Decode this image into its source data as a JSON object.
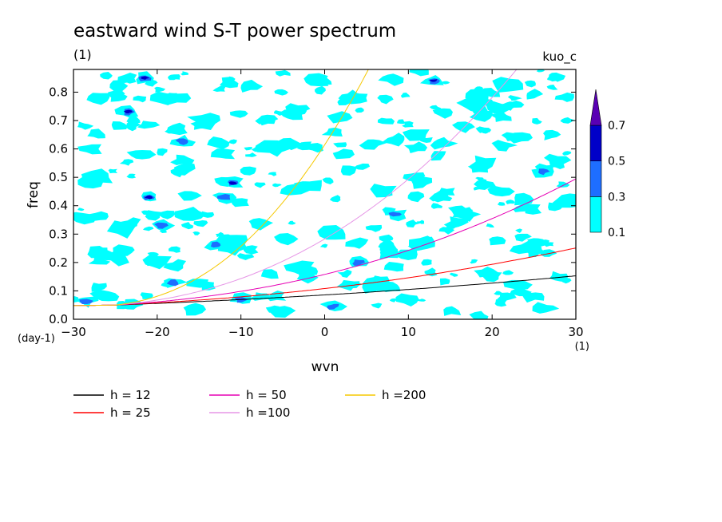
{
  "chart_data": {
    "type": "heatmap",
    "title": "eastward wind S-T power spectrum",
    "subtitle_left": "(1)",
    "subtitle_right": "kuo_c",
    "xlabel": "wvn",
    "ylabel": "freq",
    "x_unit": "(1)",
    "y_unit": "(day-1)",
    "xlim": [
      -30,
      30
    ],
    "ylim": [
      0,
      0.88
    ],
    "x_ticks": [
      -30,
      -20,
      -10,
      0,
      10,
      20,
      30
    ],
    "x_tick_labels": [
      "−30",
      "−20",
      "−10",
      "0",
      "10",
      "20",
      "30"
    ],
    "y_ticks": [
      0.0,
      0.1,
      0.2,
      0.3,
      0.4,
      0.5,
      0.6,
      0.7,
      0.8
    ],
    "y_tick_labels": [
      "0.0",
      "0.1",
      "0.2",
      "0.3",
      "0.4",
      "0.5",
      "0.6",
      "0.7",
      "0.8"
    ],
    "grid": false,
    "colorbar": {
      "levels": [
        0.1,
        0.3,
        0.5,
        0.7
      ],
      "level_labels": [
        "0.1",
        "0.3",
        "0.5",
        "0.7"
      ],
      "colors": [
        "#00ffff",
        "#1e6eff",
        "#0000c8",
        "#5a00b4"
      ],
      "extend": "max",
      "placement": "right"
    },
    "dispersion_curves": [
      {
        "name": "h = 12",
        "h": 12,
        "color": "#000000"
      },
      {
        "name": "h = 25",
        "h": 25,
        "color": "#ff0000"
      },
      {
        "name": "h = 50",
        "h": 50,
        "color": "#e600b4"
      },
      {
        "name": "h =100",
        "h": 100,
        "color": "#e696e6"
      },
      {
        "name": "h =200",
        "h": 200,
        "color": "#f5c800"
      }
    ],
    "legend_placement": "bottom-left",
    "field_pattern": {
      "seed": 7,
      "clusters": [
        {
          "wvn": -28.5,
          "freq": 0.065,
          "level": 0.3
        },
        {
          "wvn": -23.5,
          "freq": 0.73,
          "level": 0.5
        },
        {
          "wvn": -21.5,
          "freq": 0.85,
          "level": 0.5
        },
        {
          "wvn": -21.0,
          "freq": 0.43,
          "level": 0.5
        },
        {
          "wvn": -19.5,
          "freq": 0.33,
          "level": 0.3
        },
        {
          "wvn": -18.0,
          "freq": 0.13,
          "level": 0.3
        },
        {
          "wvn": -17.0,
          "freq": 0.625,
          "level": 0.3
        },
        {
          "wvn": -13.0,
          "freq": 0.26,
          "level": 0.3
        },
        {
          "wvn": -12.0,
          "freq": 0.43,
          "level": 0.3
        },
        {
          "wvn": -11.0,
          "freq": 0.48,
          "level": 0.5
        },
        {
          "wvn": -10.0,
          "freq": 0.07,
          "level": 0.3
        },
        {
          "wvn": 1.0,
          "freq": 0.045,
          "level": 0.3
        },
        {
          "wvn": 4.0,
          "freq": 0.2,
          "level": 0.3
        },
        {
          "wvn": 13.0,
          "freq": 0.84,
          "level": 0.5
        },
        {
          "wvn": 8.5,
          "freq": 0.37,
          "level": 0.3
        },
        {
          "wvn": 26.0,
          "freq": 0.52,
          "level": 0.3
        }
      ],
      "patches": [
        {
          "wvn": -27,
          "freq": 0.78
        },
        {
          "wvn": -28,
          "freq": 0.6
        },
        {
          "wvn": -27,
          "freq": 0.5
        },
        {
          "wvn": -25,
          "freq": 0.22
        },
        {
          "wvn": -26,
          "freq": 0.08
        },
        {
          "wvn": -24,
          "freq": 0.32
        },
        {
          "wvn": -22,
          "freq": 0.58
        },
        {
          "wvn": -20,
          "freq": 0.2
        },
        {
          "wvn": -19,
          "freq": 0.78
        },
        {
          "wvn": -17,
          "freq": 0.53
        },
        {
          "wvn": -16,
          "freq": 0.37
        },
        {
          "wvn": -14,
          "freq": 0.7
        },
        {
          "wvn": -14,
          "freq": 0.12
        },
        {
          "wvn": -12,
          "freq": 0.58
        },
        {
          "wvn": -11,
          "freq": 0.25
        },
        {
          "wvn": -9,
          "freq": 0.82
        },
        {
          "wvn": -8,
          "freq": 0.34
        },
        {
          "wvn": -6,
          "freq": 0.6
        },
        {
          "wvn": -5,
          "freq": 0.03
        },
        {
          "wvn": -4,
          "freq": 0.72
        },
        {
          "wvn": -2,
          "freq": 0.47
        },
        {
          "wvn": -1,
          "freq": 0.84
        },
        {
          "wvn": 1,
          "freq": 0.3
        },
        {
          "wvn": 2,
          "freq": 0.58
        },
        {
          "wvn": 4,
          "freq": 0.78
        },
        {
          "wvn": 6,
          "freq": 0.12
        },
        {
          "wvn": 7,
          "freq": 0.45
        },
        {
          "wvn": 10,
          "freq": 0.07
        },
        {
          "wvn": 12,
          "freq": 0.27
        },
        {
          "wvn": 14,
          "freq": 0.62
        },
        {
          "wvn": 15,
          "freq": 0.03
        },
        {
          "wvn": 17,
          "freq": 0.37
        },
        {
          "wvn": 18,
          "freq": 0.75
        },
        {
          "wvn": 20,
          "freq": 0.15
        },
        {
          "wvn": 21,
          "freq": 0.45
        },
        {
          "wvn": 22,
          "freq": 0.83
        },
        {
          "wvn": 24,
          "freq": 0.25
        },
        {
          "wvn": 25,
          "freq": 0.08
        },
        {
          "wvn": 27,
          "freq": 0.65
        },
        {
          "wvn": 28,
          "freq": 0.15
        },
        {
          "wvn": 29,
          "freq": 0.42
        },
        {
          "wvn": -29,
          "freq": 0.36
        },
        {
          "wvn": -23,
          "freq": 0.05
        },
        {
          "wvn": 19,
          "freq": 0.55
        },
        {
          "wvn": 11,
          "freq": 0.65
        },
        {
          "wvn": 8,
          "freq": 0.85
        },
        {
          "wvn": -3,
          "freq": 0.18
        },
        {
          "wvn": 3,
          "freq": 0.12
        }
      ]
    }
  }
}
